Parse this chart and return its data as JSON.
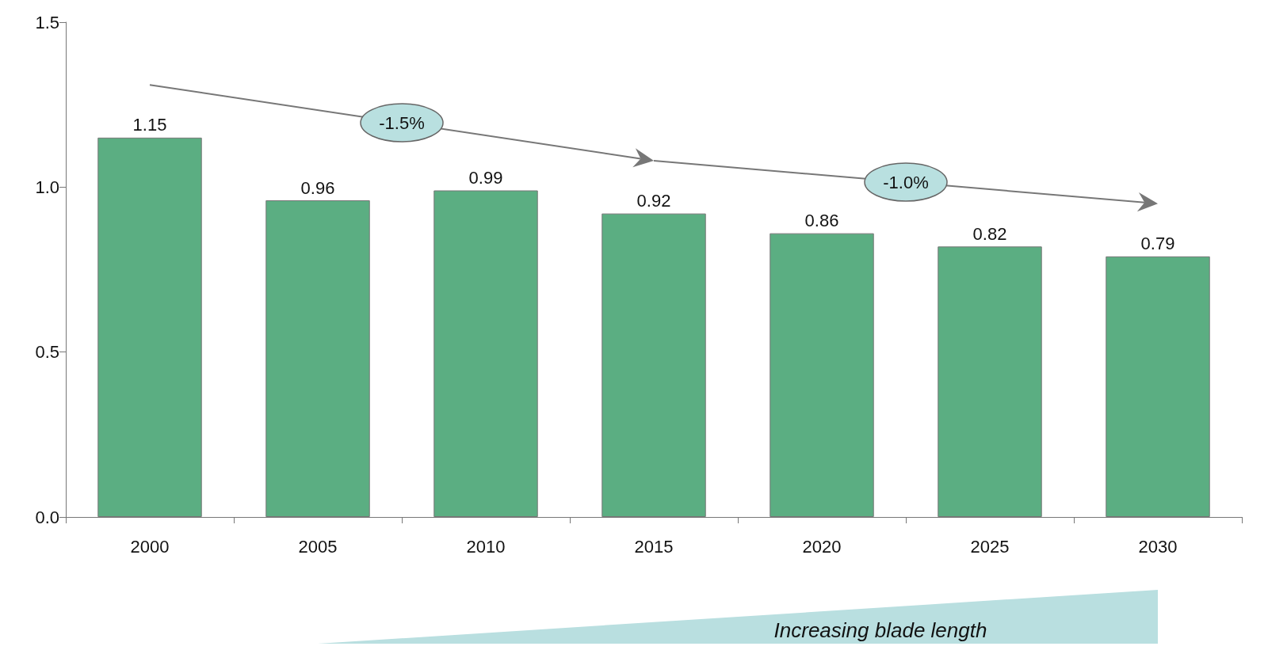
{
  "chart_data": {
    "type": "bar",
    "categories": [
      "2000",
      "2005",
      "2010",
      "2015",
      "2020",
      "2025",
      "2030"
    ],
    "values": [
      1.15,
      0.96,
      0.99,
      0.92,
      0.86,
      0.82,
      0.79
    ],
    "color": "#5bae82",
    "ylim": [
      0,
      1.5
    ],
    "yticks": [
      {
        "value": 0,
        "label": "0.0"
      },
      {
        "value": 0.5,
        "label": "0.5"
      },
      {
        "value": 1,
        "label": "1.0"
      },
      {
        "value": 1.5,
        "label": "1.5"
      }
    ],
    "data_labels": true,
    "grid": false,
    "annotations": [
      "-1.5%",
      "-1.0%",
      "Increasing blade length"
    ]
  }
}
